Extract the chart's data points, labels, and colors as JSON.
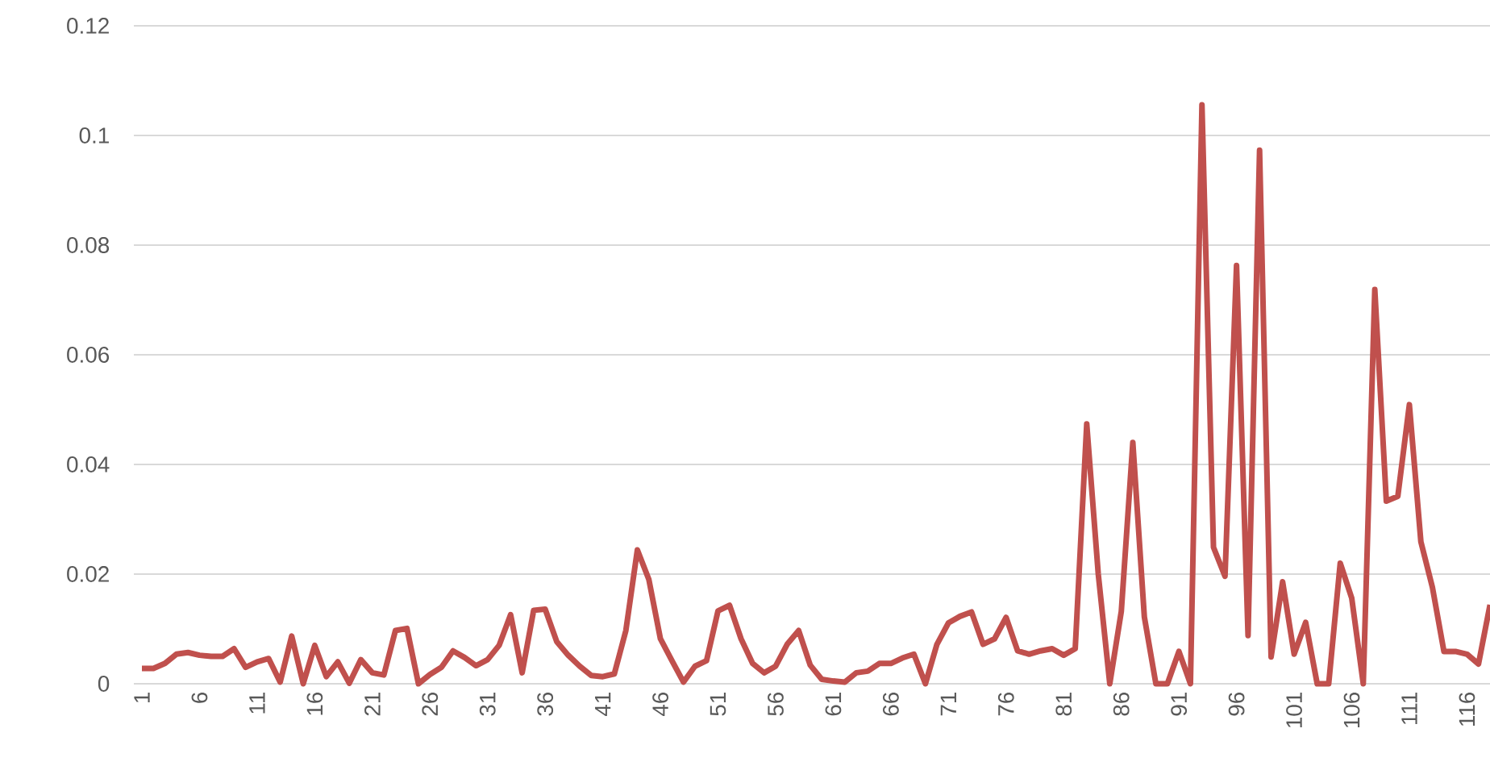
{
  "chart_data": {
    "type": "line",
    "categories": [
      "1",
      null,
      null,
      null,
      null,
      "6",
      null,
      null,
      null,
      null,
      "11",
      null,
      null,
      null,
      null,
      "16",
      null,
      null,
      null,
      null,
      "21",
      null,
      null,
      null,
      null,
      "26",
      null,
      null,
      null,
      null,
      "31",
      null,
      null,
      null,
      null,
      "36",
      null,
      null,
      null,
      null,
      "41",
      null,
      null,
      null,
      null,
      "46",
      null,
      null,
      null,
      null,
      "51",
      null,
      null,
      null,
      null,
      "56",
      null,
      null,
      null,
      null,
      "61",
      null,
      null,
      null,
      null,
      "66",
      null,
      null,
      null,
      null,
      "71",
      null,
      null,
      null,
      null,
      "76",
      null,
      null,
      null,
      null,
      "81",
      null,
      null,
      null,
      null,
      "86",
      null,
      null,
      null,
      null,
      "91",
      null,
      null,
      null,
      null,
      "96",
      null,
      null,
      null,
      null,
      "101",
      null,
      null,
      null,
      null,
      "106",
      null,
      null,
      null,
      null,
      "111",
      null,
      null,
      null,
      null,
      "116",
      null,
      null
    ],
    "values": [
      0.0028,
      0.0028,
      0.0037,
      0.0054,
      0.0057,
      0.0052,
      0.005,
      0.005,
      0.0064,
      0.003,
      0.004,
      0.0046,
      0.0003,
      0.0087,
      0,
      0.007,
      0.0013,
      0.004,
      0.0001,
      0.0044,
      0.002,
      0.0016,
      0.0097,
      0.0101,
      0,
      0.0017,
      0.003,
      0.006,
      0.0048,
      0.0033,
      0.0044,
      0.007,
      0.0126,
      0.002,
      0.0134,
      0.0136,
      0.0077,
      0.0052,
      0.0032,
      0.0015,
      0.0013,
      0.0018,
      0.0097,
      0.0244,
      0.019,
      0.0082,
      0.0042,
      0.0003,
      0.0032,
      0.0042,
      0.0133,
      0.0143,
      0.0082,
      0.0037,
      0.002,
      0.0032,
      0.0072,
      0.0097,
      0.0034,
      0.0008,
      0.0005,
      0.0003,
      0.002,
      0.0023,
      0.0037,
      0.0037,
      0.0047,
      0.0054,
      0,
      0.0072,
      0.0111,
      0.0123,
      0.0131,
      0.0072,
      0.0082,
      0.0121,
      0.006,
      0.0054,
      0.006,
      0.0064,
      0.0052,
      0.0064,
      0.0474,
      0.02,
      0,
      0.0132,
      0.044,
      0.0122,
      0,
      0,
      0.0059,
      0,
      0.1056,
      0.0249,
      0.0196,
      0.0763,
      0.0088,
      0.0973,
      0.0049,
      0.0186,
      0.0054,
      0.0112,
      0,
      0,
      0.022,
      0.0156,
      0,
      0.0719,
      0.0333,
      0.0342,
      0.0509,
      0.0259,
      0.0176,
      0.0059,
      0.0059,
      0.0054,
      0.0036,
      0.0144
    ],
    "color": "#c0504d",
    "ylim": [
      0,
      0.12
    ],
    "yticks": [
      0,
      0.02,
      0.04,
      0.06,
      0.08,
      0.1,
      0.12
    ],
    "grid": "y"
  }
}
